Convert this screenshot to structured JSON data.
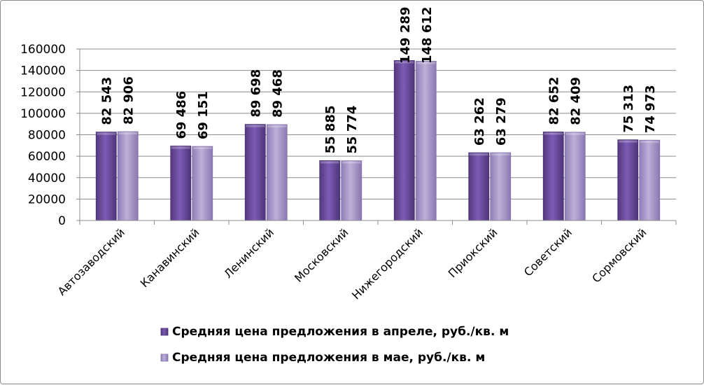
{
  "chart_data": {
    "type": "bar",
    "title": "",
    "xlabel": "",
    "ylabel": "",
    "ylim": [
      0,
      160000
    ],
    "yticks": [
      "0",
      "20000",
      "40000",
      "60000",
      "80000",
      "100000",
      "120000",
      "140000",
      "160000"
    ],
    "grid": true,
    "legend_position": "bottom",
    "categories": [
      "Автозаводский",
      "Канавинский",
      "Ленинский",
      "Московский",
      "Нижегородский",
      "Приокский",
      "Советский",
      "Сормовский"
    ],
    "series": [
      {
        "name": "Средняя цена предложения в апреле, руб./кв. м",
        "color": "#6b4fa0",
        "values": [
          82543,
          69486,
          89698,
          55885,
          149289,
          63262,
          82652,
          75313
        ],
        "labels": [
          "82 543",
          "69 486",
          "89 698",
          "55 885",
          "149 289",
          "63 262",
          "82 652",
          "75 313"
        ]
      },
      {
        "name": "Средняя цена предложения в мае, руб./кв. м",
        "color": "#a696c8",
        "values": [
          82906,
          69151,
          89468,
          55774,
          148612,
          63279,
          82409,
          74973
        ],
        "labels": [
          "82 906",
          "69 151",
          "89 468",
          "55 774",
          "148 612",
          "63 279",
          "82 409",
          "74 973"
        ]
      }
    ]
  }
}
